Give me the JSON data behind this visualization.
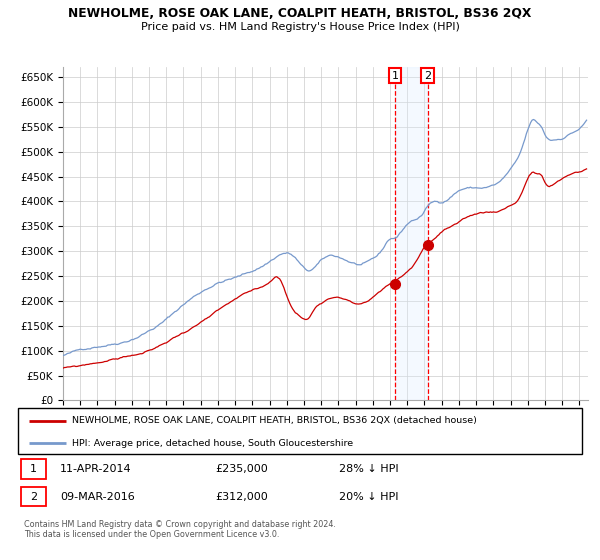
{
  "title": "NEWHOLME, ROSE OAK LANE, COALPIT HEATH, BRISTOL, BS36 2QX",
  "subtitle": "Price paid vs. HM Land Registry's House Price Index (HPI)",
  "xlim_start": 1995.0,
  "xlim_end": 2025.5,
  "ylim": [
    0,
    670000
  ],
  "yticks": [
    0,
    50000,
    100000,
    150000,
    200000,
    250000,
    300000,
    350000,
    400000,
    450000,
    500000,
    550000,
    600000,
    650000
  ],
  "ytick_labels": [
    "£0",
    "£50K",
    "£100K",
    "£150K",
    "£200K",
    "£250K",
    "£300K",
    "£350K",
    "£400K",
    "£450K",
    "£500K",
    "£550K",
    "£600K",
    "£650K"
  ],
  "hpi_color": "#7799cc",
  "price_color": "#cc0000",
  "marker_color": "#cc0000",
  "sale1_year": 2014.278,
  "sale1_price": 235000,
  "sale2_year": 2016.183,
  "sale2_price": 312000,
  "legend_property": "NEWHOLME, ROSE OAK LANE, COALPIT HEATH, BRISTOL, BS36 2QX (detached house)",
  "legend_hpi": "HPI: Average price, detached house, South Gloucestershire",
  "bg_color": "#ffffff",
  "grid_color": "#cccccc",
  "shade_color": "#ddeeff"
}
